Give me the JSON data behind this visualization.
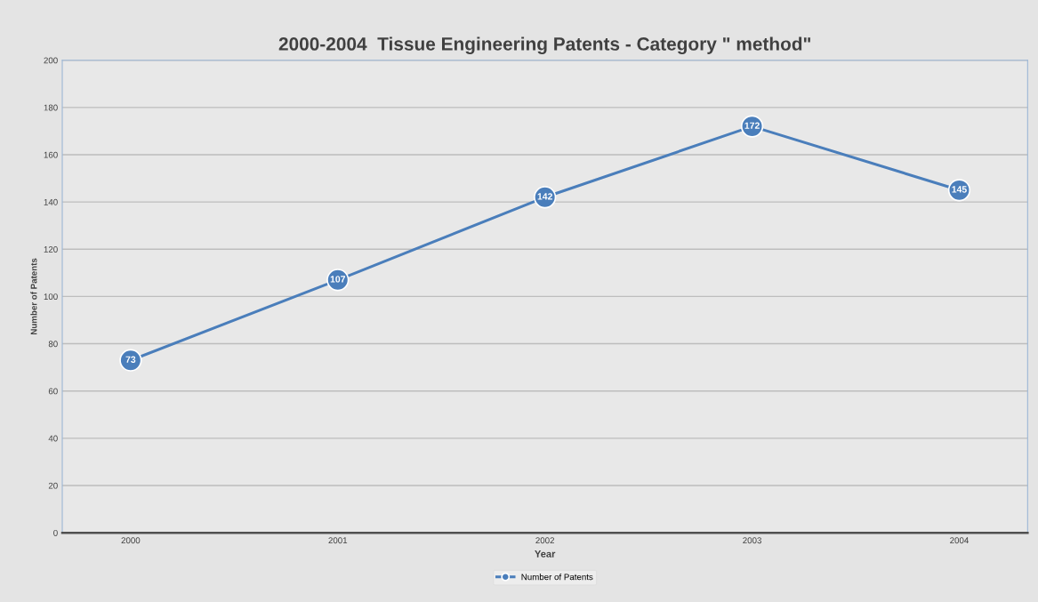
{
  "chart_data": {
    "type": "line",
    "title": "2000-2004  Tissue Engineering Patents - Category \" method\"",
    "xlabel": "Year",
    "ylabel": "Number of Patents",
    "categories": [
      "2000",
      "2001",
      "2002",
      "2003",
      "2004"
    ],
    "series": [
      {
        "name": "Number of Patents",
        "color": "#4a7ebb",
        "values": [
          73,
          107,
          142,
          172,
          145
        ]
      }
    ],
    "ylim": [
      0,
      200
    ],
    "yticks": [
      0,
      20,
      40,
      60,
      80,
      100,
      120,
      140,
      160,
      180,
      200
    ],
    "grid": "y",
    "legend": "bottom",
    "marker": "circle",
    "line_style": "solid",
    "data_labels": true
  }
}
